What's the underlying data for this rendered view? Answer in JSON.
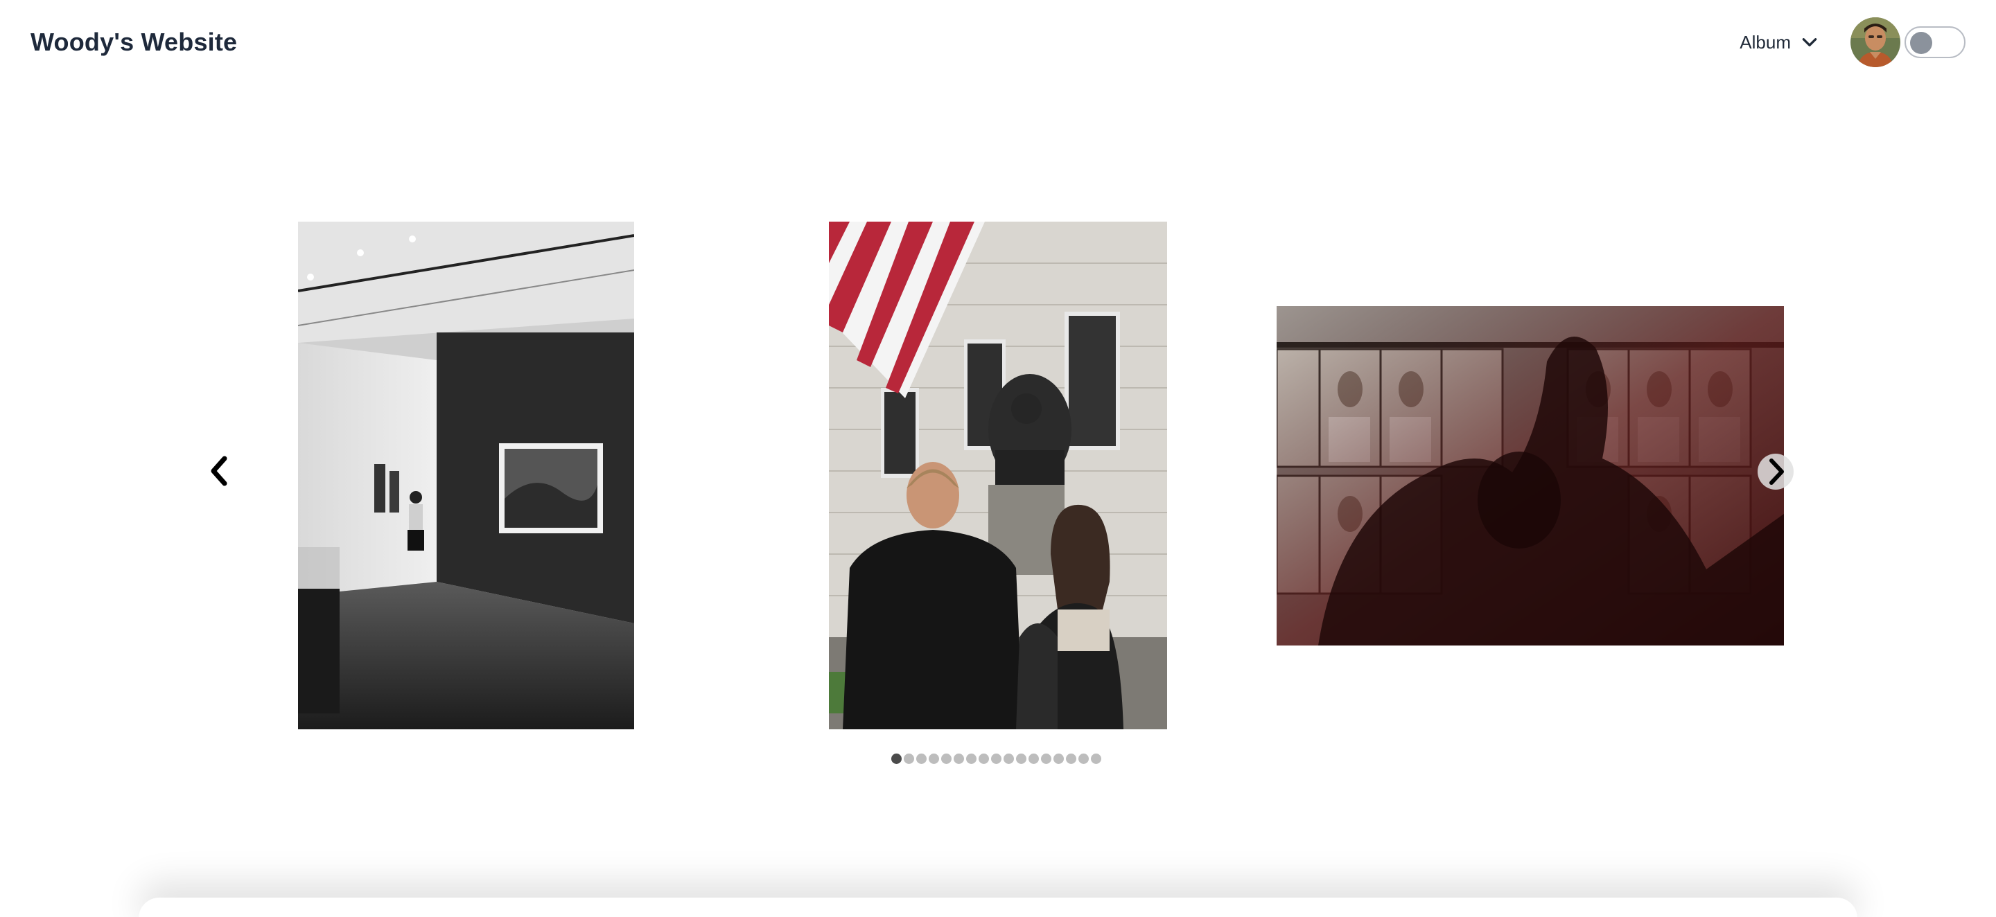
{
  "header": {
    "title": "Woody's Website",
    "album_label": "Album",
    "album_icon": "chevron-down-icon",
    "avatar": "profile-photo",
    "theme_toggle": {
      "state": "off"
    }
  },
  "carousel": {
    "prev_icon": "chevron-left-icon",
    "next_icon": "chevron-right-icon",
    "slides": [
      {
        "name": "gallery-visitor-photo",
        "tone": "black-and-white"
      },
      {
        "name": "flag-and-statue-photo",
        "tone": "color"
      },
      {
        "name": "museum-reflection-photo",
        "tone": "color"
      }
    ],
    "dot_count": 17,
    "active_dot": 0
  },
  "colors": {
    "title": "#1e293b",
    "dot_active": "#4b4b4b",
    "dot_inactive": "#bdbdbd",
    "toggle_knob": "#8b929c"
  }
}
